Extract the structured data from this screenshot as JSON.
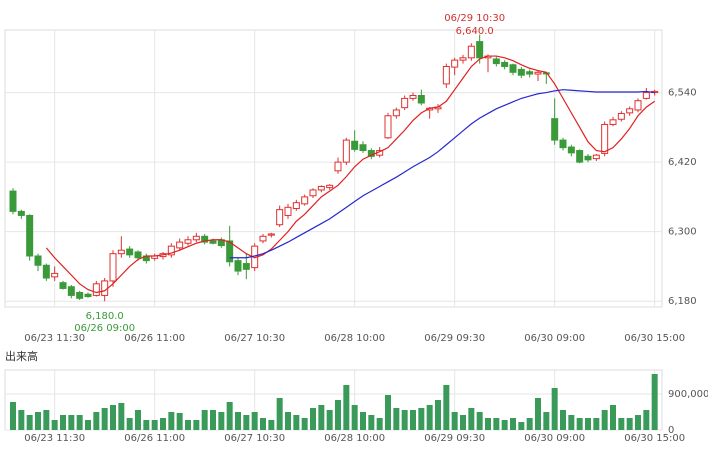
{
  "chart_data": {
    "type": "candlestick",
    "categories": [
      null,
      null,
      null,
      null,
      null,
      "06/23 11:30",
      null,
      null,
      null,
      null,
      null,
      null,
      null,
      null,
      null,
      null,
      null,
      "06/26 11:00",
      null,
      null,
      null,
      null,
      null,
      null,
      null,
      null,
      null,
      null,
      null,
      "06/27 10:30",
      null,
      null,
      null,
      null,
      null,
      null,
      null,
      null,
      null,
      null,
      null,
      "06/28 10:00",
      null,
      null,
      null,
      null,
      null,
      null,
      null,
      null,
      null,
      null,
      null,
      "06/29 09:30",
      null,
      null,
      null,
      null,
      null,
      null,
      null,
      null,
      null,
      null,
      null,
      "06/30 09:00",
      null,
      null,
      null,
      null,
      null,
      null,
      null,
      null,
      null,
      null,
      null,
      "06/30 15:00"
    ],
    "open": [
      6370,
      6335,
      6328,
      6258,
      6242,
      6222,
      6212,
      6205,
      6195,
      6192,
      6190,
      6190,
      6215,
      6262,
      6270,
      6265,
      6258,
      6254,
      6257,
      6260,
      6272,
      6280,
      6286,
      6292,
      6284,
      6286,
      6284,
      6250,
      6245,
      6238,
      6284,
      6294,
      6312,
      6328,
      6340,
      6348,
      6362,
      6372,
      6376,
      6405,
      6420,
      6456,
      6450,
      6440,
      6432,
      6462,
      6500,
      6514,
      6530,
      6535,
      6510,
      6512,
      6555,
      6584,
      6596,
      6600,
      6628,
      6600,
      6598,
      6592,
      6588,
      6580,
      6576,
      6572,
      6574,
      6495,
      6458,
      6446,
      6440,
      6430,
      6426,
      6435,
      6485,
      6494,
      6505,
      6510,
      6530,
      6540
    ],
    "high": [
      6375,
      6338,
      6330,
      6262,
      6245,
      6240,
      6215,
      6208,
      6198,
      6195,
      6215,
      6220,
      6268,
      6292,
      6275,
      6268,
      6262,
      6262,
      6265,
      6280,
      6288,
      6292,
      6298,
      6296,
      6288,
      6290,
      6310,
      6255,
      6262,
      6280,
      6296,
      6298,
      6345,
      6348,
      6355,
      6364,
      6375,
      6380,
      6382,
      6428,
      6462,
      6475,
      6456,
      6444,
      6446,
      6505,
      6514,
      6535,
      6540,
      6545,
      6515,
      6520,
      6590,
      6600,
      6605,
      6625,
      6640,
      6606,
      6602,
      6596,
      6590,
      6584,
      6580,
      6578,
      6576,
      6530,
      6462,
      6450,
      6442,
      6434,
      6434,
      6490,
      6498,
      6508,
      6516,
      6530,
      6548,
      6545
    ],
    "low": [
      6330,
      6322,
      6250,
      6232,
      6215,
      6215,
      6200,
      6185,
      6182,
      6186,
      6188,
      6180,
      6205,
      6255,
      6255,
      6250,
      6245,
      6250,
      6252,
      6255,
      6268,
      6276,
      6282,
      6278,
      6278,
      6272,
      6240,
      6225,
      6218,
      6232,
      6280,
      6290,
      6308,
      6322,
      6336,
      6345,
      6358,
      6368,
      6372,
      6400,
      6415,
      6438,
      6436,
      6425,
      6428,
      6460,
      6495,
      6510,
      6526,
      6518,
      6495,
      6505,
      6548,
      6570,
      6590,
      6595,
      6590,
      6575,
      6585,
      6580,
      6570,
      6565,
      6566,
      6560,
      6555,
      6450,
      6440,
      6430,
      6418,
      6420,
      6422,
      6430,
      6482,
      6490,
      6500,
      6506,
      6528,
      6535
    ],
    "close": [
      6335,
      6328,
      6258,
      6242,
      6220,
      6228,
      6202,
      6190,
      6185,
      6188,
      6210,
      6215,
      6262,
      6268,
      6260,
      6255,
      6250,
      6258,
      6262,
      6275,
      6282,
      6286,
      6292,
      6282,
      6280,
      6276,
      6248,
      6232,
      6235,
      6275,
      6292,
      6296,
      6338,
      6342,
      6350,
      6360,
      6372,
      6378,
      6380,
      6420,
      6458,
      6442,
      6440,
      6430,
      6440,
      6500,
      6510,
      6530,
      6535,
      6522,
      6513,
      6515,
      6585,
      6596,
      6600,
      6620,
      6600,
      6603,
      6590,
      6585,
      6575,
      6570,
      6572,
      6575,
      6573,
      6458,
      6445,
      6436,
      6420,
      6424,
      6432,
      6485,
      6493,
      6504,
      6512,
      6526,
      6540,
      6542
    ],
    "up_color": "#e03030",
    "down_color": "#3a9a3a",
    "ylim": [
      6170,
      6648
    ],
    "yticks": [
      {
        "value": 6180,
        "label": "6,180"
      },
      {
        "value": 6300,
        "label": "6,300"
      },
      {
        "value": 6420,
        "label": "6,420"
      },
      {
        "value": 6540,
        "label": "6,540"
      }
    ],
    "grid": true,
    "moving_averages": [
      {
        "color": "#e02020",
        "values": [
          null,
          null,
          null,
          null,
          6272,
          6255,
          6240,
          6225,
          6210,
          6200,
          6195,
          6198,
          6210,
          6225,
          6240,
          6252,
          6258,
          6258,
          6260,
          6263,
          6268,
          6274,
          6280,
          6284,
          6286,
          6286,
          6282,
          6272,
          6262,
          6255,
          6260,
          6270,
          6285,
          6300,
          6318,
          6330,
          6345,
          6360,
          6370,
          6380,
          6395,
          6412,
          6425,
          6432,
          6438,
          6445,
          6460,
          6475,
          6492,
          6505,
          6513,
          6515,
          6525,
          6545,
          6565,
          6585,
          6598,
          6603,
          6603,
          6600,
          6595,
          6588,
          6582,
          6578,
          6575,
          6555,
          6530,
          6505,
          6480,
          6455,
          6440,
          6438,
          6445,
          6460,
          6478,
          6500,
          6515,
          6525
        ]
      },
      {
        "color": "#2828d0",
        "values": [
          null,
          null,
          null,
          null,
          null,
          null,
          null,
          null,
          null,
          null,
          null,
          null,
          null,
          null,
          null,
          null,
          null,
          null,
          null,
          null,
          null,
          null,
          null,
          null,
          null,
          null,
          6255,
          6255,
          6255,
          6258,
          6262,
          6268,
          6275,
          6282,
          6290,
          6298,
          6306,
          6314,
          6322,
          6332,
          6342,
          6352,
          6362,
          6370,
          6378,
          6386,
          6394,
          6403,
          6412,
          6420,
          6428,
          6438,
          6450,
          6462,
          6474,
          6486,
          6496,
          6504,
          6512,
          6518,
          6524,
          6530,
          6534,
          6538,
          6540,
          6543,
          6545,
          6544,
          6543,
          6542,
          6541,
          6541,
          6541,
          6541,
          6541,
          6541,
          6542,
          6540
        ]
      }
    ],
    "high_annotation": {
      "time": "06/29 10:30",
      "price": "6,640.0"
    },
    "low_annotation": {
      "price": "6,180.0",
      "time": "06/26 09:00"
    },
    "volume": {
      "label": "出来高",
      "color": "#3a9a5a",
      "values": [
        700000,
        500000,
        375000,
        450000,
        500000,
        250000,
        375000,
        375000,
        375000,
        250000,
        450000,
        550000,
        625000,
        675000,
        300000,
        500000,
        250000,
        250000,
        300000,
        450000,
        425000,
        250000,
        250000,
        500000,
        500000,
        450000,
        700000,
        450000,
        375000,
        450000,
        300000,
        250000,
        800000,
        450000,
        375000,
        300000,
        550000,
        625000,
        500000,
        750000,
        1125000,
        625000,
        450000,
        375000,
        300000,
        875000,
        550000,
        500000,
        500000,
        550000,
        625000,
        750000,
        1125000,
        450000,
        375000,
        550000,
        450000,
        300000,
        300000,
        250000,
        300000,
        200000,
        300000,
        800000,
        450000,
        1050000,
        500000,
        375000,
        300000,
        300000,
        300000,
        500000,
        625000,
        300000,
        300000,
        375000,
        500000,
        1400000
      ],
      "ylim": [
        0,
        1500000
      ],
      "yticks": [
        0,
        {
          "value": 900000,
          "label": "900,000"
        }
      ]
    }
  }
}
